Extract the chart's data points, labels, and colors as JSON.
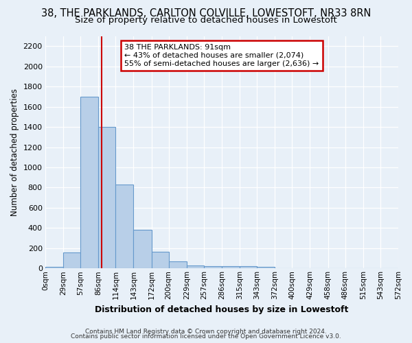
{
  "title_line1": "38, THE PARKLANDS, CARLTON COLVILLE, LOWESTOFT, NR33 8RN",
  "title_line2": "Size of property relative to detached houses in Lowestoft",
  "xlabel": "Distribution of detached houses by size in Lowestoft",
  "ylabel": "Number of detached properties",
  "footer_line1": "Contains HM Land Registry data © Crown copyright and database right 2024.",
  "footer_line2": "Contains public sector information licensed under the Open Government Licence v3.0.",
  "bin_edges": [
    0,
    29,
    57,
    86,
    114,
    143,
    172,
    200,
    229,
    257,
    286,
    315,
    343,
    372,
    400,
    429,
    458,
    486,
    515,
    543,
    572
  ],
  "bin_labels": [
    "0sqm",
    "29sqm",
    "57sqm",
    "86sqm",
    "114sqm",
    "143sqm",
    "172sqm",
    "200sqm",
    "229sqm",
    "257sqm",
    "286sqm",
    "315sqm",
    "343sqm",
    "372sqm",
    "400sqm",
    "429sqm",
    "458sqm",
    "486sqm",
    "515sqm",
    "543sqm",
    "572sqm"
  ],
  "counts": [
    15,
    155,
    1700,
    1400,
    830,
    385,
    165,
    70,
    30,
    25,
    25,
    25,
    15,
    5,
    5,
    3,
    3,
    3,
    3,
    2
  ],
  "bar_color": "#b8cfe8",
  "bar_edge_color": "#6699cc",
  "property_size": 91,
  "vline_color": "#cc0000",
  "annotation_text_line1": "38 THE PARKLANDS: 91sqm",
  "annotation_text_line2": "← 43% of detached houses are smaller (2,074)",
  "annotation_text_line3": "55% of semi-detached houses are larger (2,636) →",
  "annotation_box_color": "#ffffff",
  "annotation_border_color": "#cc0000",
  "ylim": [
    0,
    2300
  ],
  "yticks": [
    0,
    200,
    400,
    600,
    800,
    1000,
    1200,
    1400,
    1600,
    1800,
    2000,
    2200
  ],
  "background_color": "#e8f0f8",
  "grid_color": "#d0d8e8",
  "title_fontsize": 10.5,
  "subtitle_fontsize": 9.5
}
